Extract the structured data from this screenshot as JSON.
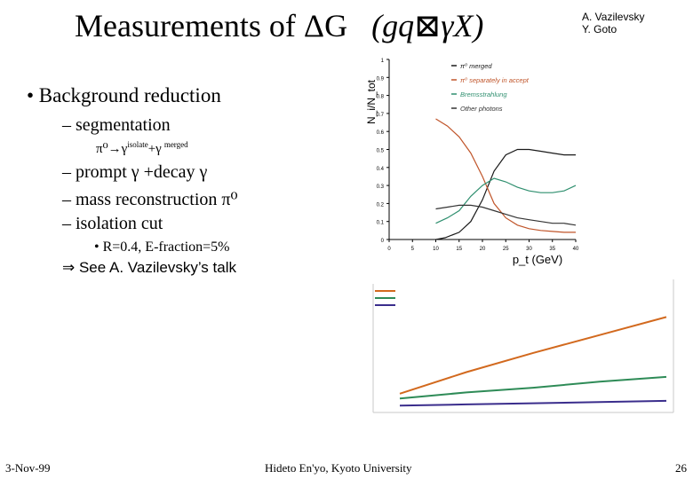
{
  "slide": {
    "title_main": "Measurements of ΔG",
    "title_formula": "(gq⊠γX)",
    "authors": [
      "A. Vazilevsky",
      "Y. Goto"
    ],
    "bullet": "• Background reduction",
    "sub_items": [
      "– segmentation",
      "– prompt γ +decay γ",
      "– mass reconstruction π⁰",
      "– isolation cut"
    ],
    "segmentation_detail": {
      "main": "π⁰→γ",
      "isolate": "isolate",
      "plus": "+γ",
      "merged": "merged"
    },
    "isolation_detail": "• R=0.4, E-fraction=5%",
    "reference": "⇒ See A. Vazilevsky’s talk",
    "footer": {
      "date": "3-Nov-99",
      "institution": "Hideto En'yo, Kyoto University",
      "page": "26"
    }
  },
  "chart_data": [
    {
      "type": "line",
      "xlabel": "p_t (GeV)",
      "ylabel": "N_i/N_tot",
      "xlim": [
        0,
        40
      ],
      "ylim": [
        0,
        1
      ],
      "x_ticks": [
        "0",
        "5",
        "10",
        "15",
        "20",
        "25",
        "30",
        "35",
        "40"
      ],
      "y_ticks": [
        "0",
        "0.1",
        "0.2",
        "0.3",
        "0.4",
        "0.5",
        "0.6",
        "0.7",
        "0.8",
        "0.9",
        "1"
      ],
      "legend": [
        "π⁰ merged",
        "π⁰ separately in accept",
        "Bremsstrahlung",
        "Other photons"
      ],
      "series": [
        {
          "name": "π⁰ merged",
          "color": "#1a1a1a",
          "x": [
            10,
            12,
            15,
            17.5,
            20,
            22.5,
            25,
            27.5,
            30,
            32.5,
            35,
            37.5,
            40
          ],
          "y": [
            0.0,
            0.01,
            0.04,
            0.1,
            0.22,
            0.38,
            0.47,
            0.5,
            0.5,
            0.49,
            0.48,
            0.47,
            0.47
          ]
        },
        {
          "name": "π⁰ separately in accept",
          "color": "#c0552a",
          "x": [
            10,
            12.5,
            15,
            17.5,
            20,
            22.5,
            25,
            27.5,
            30,
            32.5,
            35,
            37.5,
            40
          ],
          "y": [
            0.67,
            0.63,
            0.57,
            0.48,
            0.35,
            0.2,
            0.12,
            0.08,
            0.06,
            0.05,
            0.045,
            0.04,
            0.04
          ]
        },
        {
          "name": "Bremsstrahlung",
          "color": "#2f8f6f",
          "x": [
            10,
            12.5,
            15,
            17.5,
            20,
            22.5,
            25,
            27.5,
            30,
            32.5,
            35,
            37.5,
            40
          ],
          "y": [
            0.09,
            0.12,
            0.16,
            0.24,
            0.3,
            0.34,
            0.32,
            0.29,
            0.27,
            0.26,
            0.26,
            0.27,
            0.3
          ]
        },
        {
          "name": "Other photons",
          "color": "#333333",
          "x": [
            10,
            12.5,
            15,
            17.5,
            20,
            22.5,
            25,
            27.5,
            30,
            32.5,
            35,
            37.5,
            40
          ],
          "y": [
            0.17,
            0.18,
            0.19,
            0.19,
            0.18,
            0.16,
            0.14,
            0.12,
            0.11,
            0.1,
            0.09,
            0.09,
            0.08
          ]
        }
      ]
    },
    {
      "type": "line",
      "xlim": [
        0,
        1
      ],
      "ylim": [
        0,
        1
      ],
      "series": [
        {
          "color": "#d2691e",
          "x": [
            0,
            0.25,
            0.5,
            0.75,
            1
          ],
          "y": [
            0.12,
            0.3,
            0.46,
            0.61,
            0.76
          ]
        },
        {
          "color": "#2e8b57",
          "x": [
            0,
            0.25,
            0.5,
            0.75,
            1
          ],
          "y": [
            0.08,
            0.13,
            0.17,
            0.22,
            0.26
          ]
        },
        {
          "color": "#3a2d8c",
          "x": [
            0,
            0.25,
            0.5,
            0.75,
            1
          ],
          "y": [
            0.02,
            0.03,
            0.04,
            0.05,
            0.06
          ]
        }
      ]
    }
  ]
}
